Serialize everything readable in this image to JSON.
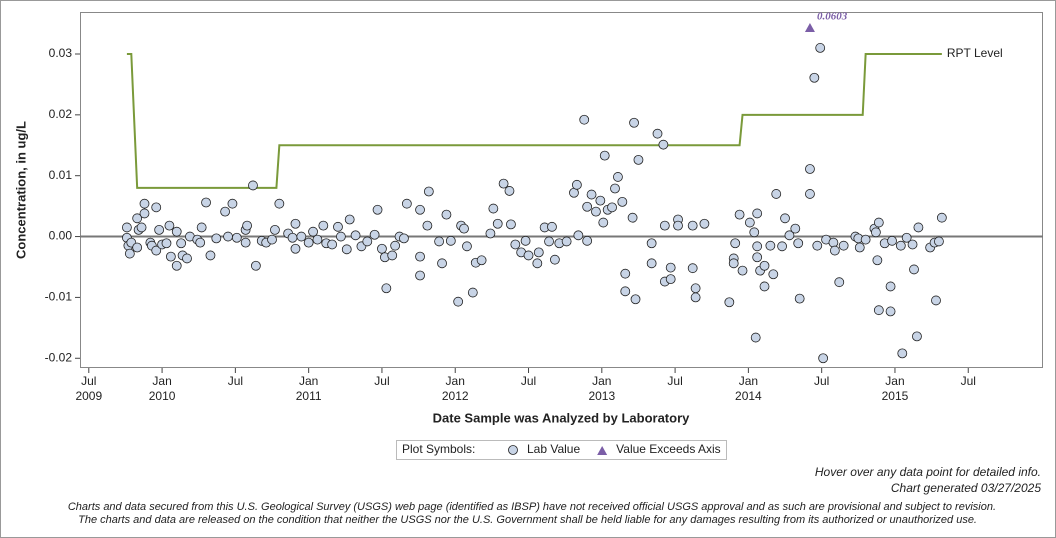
{
  "chart_data": {
    "type": "scatter",
    "y_label": "Concentration, in ug/L",
    "x_label": "Date Sample was Analyzed by Laboratory",
    "xlim": [
      2009.44,
      2016.01
    ],
    "ylim": [
      -0.0216,
      0.0369
    ],
    "yticks": [
      -0.02,
      -0.01,
      {
        "value": 0,
        "label": "0.00"
      },
      0.01,
      0.02,
      0.03
    ],
    "xticks": [
      {
        "value": 2009.5,
        "label": "Jul"
      },
      {
        "value": 2010,
        "label": "Jan"
      },
      {
        "value": 2010.5,
        "label": "Jul"
      },
      {
        "value": 2011,
        "label": "Jan"
      },
      {
        "value": 2011.5,
        "label": "Jul"
      },
      {
        "value": 2012,
        "label": "Jan"
      },
      {
        "value": 2012.5,
        "label": "Jul"
      },
      {
        "value": 2013,
        "label": "Jan"
      },
      {
        "value": 2013.5,
        "label": "Jul"
      },
      {
        "value": 2014,
        "label": "Jan"
      },
      {
        "value": 2014.5,
        "label": "Jul"
      },
      {
        "value": 2015,
        "label": "Jan"
      },
      {
        "value": 2015.5,
        "label": "Jul"
      }
    ],
    "xyears": [
      {
        "value": 2009.5,
        "label": "2009"
      },
      {
        "value": 2010,
        "label": "2010"
      },
      {
        "value": 2011,
        "label": "2011"
      },
      {
        "value": 2012,
        "label": "2012"
      },
      {
        "value": 2013,
        "label": "2013"
      },
      {
        "value": 2014,
        "label": "2014"
      },
      {
        "value": 2015,
        "label": "2015"
      }
    ],
    "reference_line": 0,
    "legend_title": "Plot Symbols:",
    "series": [
      {
        "name": "RPT Level",
        "mode": "line",
        "color": "#7a9a3a",
        "x": [
          2009.76,
          2009.79,
          2009.83,
          2010.78,
          2010.8,
          2013.94,
          2013.96,
          2014.78,
          2014.8,
          2015.32
        ],
        "values": [
          0.03,
          0.03,
          0.008,
          0.008,
          0.015,
          0.015,
          0.02,
          0.02,
          0.03,
          0.03
        ]
      },
      {
        "name": "Lab Value",
        "mode": "circle",
        "color": "#c8d4e6",
        "x": [
          2009.76,
          2009.76,
          2009.77,
          2009.78,
          2009.79,
          2009.83,
          2009.83,
          2009.84,
          2009.86,
          2009.88,
          2009.88,
          2009.92,
          2009.93,
          2009.96,
          2009.96,
          2009.98,
          2010.0,
          2010.03,
          2010.05,
          2010.06,
          2010.1,
          2010.1,
          2010.13,
          2010.14,
          2010.17,
          2010.19,
          2010.24,
          2010.26,
          2010.27,
          2010.3,
          2010.33,
          2010.37,
          2010.43,
          2010.45,
          2010.48,
          2010.51,
          2010.57,
          2010.58,
          2010.57,
          2010.62,
          2010.64,
          2010.68,
          2010.71,
          2010.75,
          2010.77,
          2010.8,
          2010.86,
          2010.89,
          2010.91,
          2010.91,
          2010.95,
          2011.0,
          2011.03,
          2011.06,
          2011.1,
          2011.12,
          2011.16,
          2011.2,
          2011.22,
          2011.26,
          2011.28,
          2011.32,
          2011.36,
          2011.4,
          2011.45,
          2011.47,
          2011.5,
          2011.52,
          2011.53,
          2011.57,
          2011.59,
          2011.62,
          2011.65,
          2011.67,
          2011.76,
          2011.76,
          2011.76,
          2011.81,
          2011.82,
          2011.89,
          2011.91,
          2011.94,
          2011.97,
          2012.02,
          2012.04,
          2012.06,
          2012.08,
          2012.12,
          2012.14,
          2012.18,
          2012.24,
          2012.26,
          2012.29,
          2012.33,
          2012.37,
          2012.38,
          2012.41,
          2012.45,
          2012.48,
          2012.5,
          2012.56,
          2012.57,
          2012.61,
          2012.64,
          2012.66,
          2012.68,
          2012.71,
          2012.76,
          2012.81,
          2012.83,
          2012.84,
          2012.88,
          2012.9,
          2012.9,
          2012.93,
          2012.96,
          2012.99,
          2013.01,
          2013.02,
          2013.04,
          2013.07,
          2013.09,
          2013.11,
          2013.14,
          2013.16,
          2013.16,
          2013.21,
          2013.22,
          2013.23,
          2013.25,
          2013.34,
          2013.34,
          2013.38,
          2013.42,
          2013.43,
          2013.43,
          2013.47,
          2013.47,
          2013.52,
          2013.52,
          2013.62,
          2013.62,
          2013.64,
          2013.64,
          2013.7,
          2013.87,
          2013.9,
          2013.9,
          2013.91,
          2013.94,
          2013.96,
          2014.01,
          2014.04,
          2014.05,
          2014.06,
          2014.06,
          2014.06,
          2014.08,
          2014.11,
          2014.11,
          2014.15,
          2014.17,
          2014.19,
          2014.23,
          2014.25,
          2014.28,
          2014.32,
          2014.34,
          2014.35,
          2014.42,
          2014.42,
          2014.45,
          2014.47,
          2014.49,
          2014.51,
          2014.53,
          2014.58,
          2014.59,
          2014.62,
          2014.65,
          2014.73,
          2014.75,
          2014.76,
          2014.8,
          2014.86,
          2014.87,
          2014.88,
          2014.89,
          2014.89,
          2014.93,
          2014.97,
          2014.97,
          2014.98,
          2015.04,
          2015.05,
          2015.08,
          2015.12,
          2015.13,
          2015.15,
          2015.16,
          2015.24,
          2015.27,
          2015.28,
          2015.3,
          2015.32
        ],
        "values": [
          0.0015,
          -0.0002,
          -0.0015,
          -0.0028,
          -0.001,
          -0.0018,
          0.003,
          0.0011,
          0.0015,
          0.0054,
          0.0038,
          -0.001,
          -0.0015,
          0.0048,
          -0.0023,
          0.0011,
          -0.0013,
          -0.0011,
          0.0018,
          -0.0033,
          0.0008,
          -0.0048,
          -0.0011,
          -0.0031,
          -0.0036,
          0,
          -0.0005,
          -0.001,
          0.0015,
          0.0056,
          -0.0031,
          -0.0003,
          0.0041,
          0,
          0.0054,
          -0.0002,
          0.0011,
          0.0018,
          -0.001,
          0.0084,
          -0.0048,
          -0.0007,
          -0.001,
          -0.0005,
          0.0011,
          0.0054,
          0.0005,
          -0.0002,
          0.0021,
          -0.002,
          0,
          -0.001,
          0.0008,
          -0.0005,
          0.0018,
          -0.0011,
          -0.0013,
          0.0016,
          0,
          -0.0021,
          0.0028,
          0.0002,
          -0.0016,
          -0.0008,
          0.0003,
          0.0044,
          -0.002,
          -0.0034,
          -0.0085,
          -0.0031,
          -0.0015,
          0,
          -0.0003,
          0.0054,
          0.0044,
          -0.0033,
          -0.0064,
          0.0018,
          0.0074,
          -0.0008,
          -0.0044,
          0.0036,
          -0.0007,
          -0.0107,
          0.0018,
          0.0013,
          -0.0016,
          -0.0092,
          -0.0043,
          -0.0039,
          0.0005,
          0.0046,
          0.0021,
          0.0087,
          0.0075,
          0.002,
          -0.0013,
          -0.0026,
          -0.0007,
          -0.0031,
          -0.0044,
          -0.0026,
          0.0015,
          -0.0008,
          0.0016,
          -0.0038,
          -0.0011,
          -0.0008,
          0.0072,
          0.0085,
          0.0002,
          0.0192,
          0.0049,
          -0.0007,
          0.0069,
          0.0041,
          0.0059,
          0.0023,
          0.0133,
          0.0044,
          0.0048,
          0.0079,
          0.0098,
          0.0057,
          -0.0061,
          -0.009,
          0.0031,
          0.0187,
          -0.0103,
          0.0126,
          -0.0011,
          -0.0044,
          0.0169,
          0.0151,
          0.0018,
          -0.0074,
          -0.0051,
          -0.007,
          0.0028,
          0.0018,
          -0.0052,
          0.0018,
          -0.01,
          -0.0085,
          0.0021,
          -0.0108,
          -0.0036,
          -0.0044,
          -0.0011,
          0.0036,
          -0.0056,
          0.0023,
          0.0007,
          -0.0166,
          -0.0016,
          0.0038,
          -0.0034,
          -0.0056,
          -0.0082,
          -0.0048,
          -0.0015,
          -0.0062,
          0.007,
          -0.0016,
          0.003,
          0.0002,
          0.0013,
          -0.0011,
          -0.0102,
          0.0111,
          0.007,
          0.0261,
          -0.0015,
          0.031,
          -0.02,
          -0.0005,
          -0.001,
          -0.0023,
          -0.0075,
          -0.0015,
          0,
          -0.0003,
          -0.0018,
          -0.0005,
          0.0013,
          0.0007,
          -0.0039,
          -0.0121,
          0.0023,
          -0.0011,
          -0.0082,
          -0.0123,
          -0.0007,
          -0.0015,
          -0.0192,
          -0.0002,
          -0.0013,
          -0.0054,
          -0.0164,
          0.0015,
          -0.0018,
          -0.001,
          -0.0105,
          -0.0008,
          0.0031
        ]
      },
      {
        "name": "Value Exceeds Axis",
        "mode": "triangle",
        "color": "#7b5ea7",
        "x": [
          2014.42
        ],
        "values": [
          0.0603
        ],
        "value_labels": [
          "0.0603"
        ]
      }
    ],
    "notes": [
      "Hover over any data point for detailed info.",
      "Chart generated 03/27/2025"
    ],
    "disclaimer": [
      "Charts and data secured from this U.S. Geological Survey (USGS) web page (identified as IBSP) have not received official USGS approval and as such are provisional and subject to revision.",
      "The charts and data are released on the condition that neither the USGS nor the U.S. Government shall be held liable for any damages resulting from its authorized or unauthorized use."
    ]
  }
}
